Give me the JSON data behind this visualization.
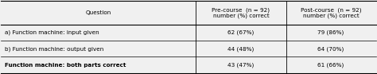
{
  "col_headers": [
    "Question",
    "Pre-course  (n = 92)\nnumber (%) correct",
    "Post-course  (n = 92)\nnumber (%) correct"
  ],
  "rows": [
    [
      "a) Function machine: input given",
      "62 (67%)",
      "79 (86%)"
    ],
    [
      "b) Function machine: output given",
      "44 (48%)",
      "64 (70%)"
    ],
    [
      "Function machine: both parts correct",
      "43 (47%)",
      "61 (66%)"
    ]
  ],
  "bold_last_row": true,
  "bg_color": "#f0f0f0",
  "fig_width": 4.74,
  "fig_height": 0.93,
  "dpi": 100
}
